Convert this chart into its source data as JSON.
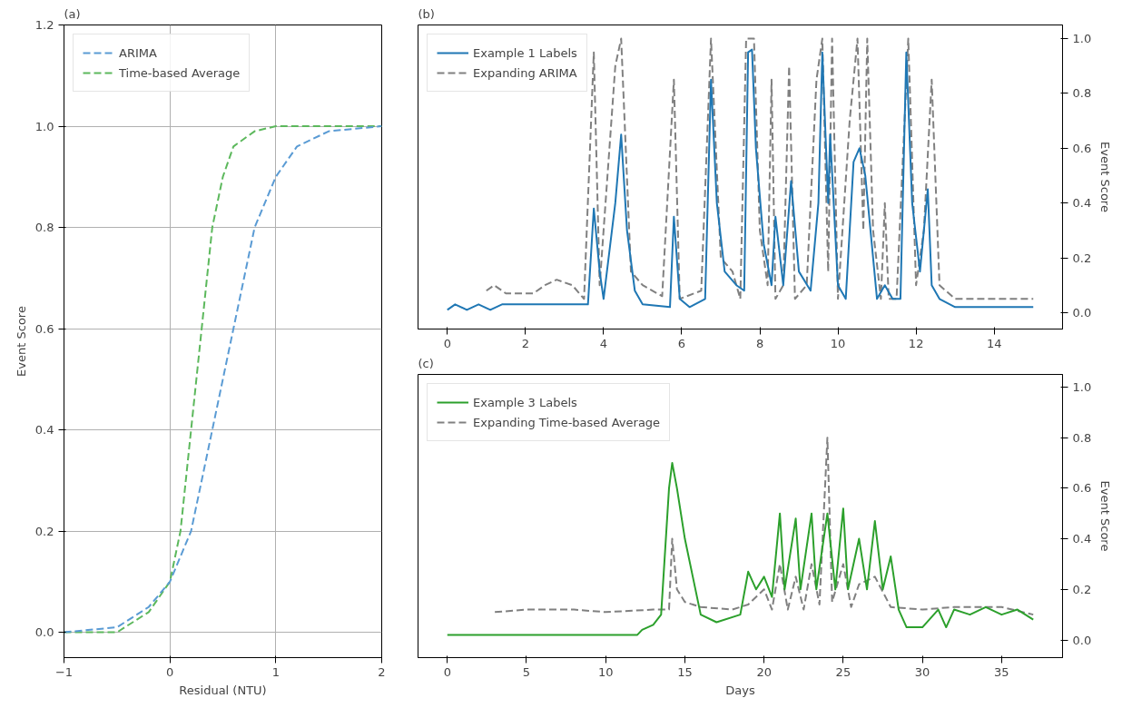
{
  "chart_data": [
    {
      "type": "line",
      "title": "(a)",
      "xlabel": "Residual (NTU)",
      "ylabel": "Event Score",
      "xlim": [
        -1,
        2
      ],
      "ylim": [
        -0.05,
        1.2
      ],
      "xticks": [
        {
          "value": -1,
          "label": "−1"
        },
        0,
        1,
        2
      ],
      "yticks": [
        {
          "value": 0,
          "label": "0.0"
        },
        {
          "value": 0.2,
          "label": "0.2"
        },
        {
          "value": 0.4,
          "label": "0.4"
        },
        {
          "value": 0.6,
          "label": "0.6"
        },
        {
          "value": 0.8,
          "label": "0.8"
        },
        {
          "value": 1.0,
          "label": "1.0"
        },
        {
          "value": 1.2,
          "label": "1.2"
        }
      ],
      "grid": true,
      "legend": "top left",
      "line_style": "dashed",
      "series": [
        {
          "name": "ARIMA",
          "color": "#5a9bd4",
          "x": [
            -1,
            -0.5,
            -0.2,
            0,
            0.2,
            0.4,
            0.6,
            0.8,
            1.0,
            1.2,
            1.5,
            2
          ],
          "values": [
            0.0,
            0.01,
            0.05,
            0.1,
            0.2,
            0.4,
            0.6,
            0.8,
            0.9,
            0.96,
            0.99,
            1.0
          ]
        },
        {
          "name": "Time-based Average",
          "color": "#5cb85c",
          "x": [
            -1,
            -0.5,
            -0.2,
            0,
            0.1,
            0.2,
            0.3,
            0.4,
            0.5,
            0.6,
            0.8,
            1.0,
            2
          ],
          "values": [
            0.0,
            0.0,
            0.04,
            0.1,
            0.2,
            0.4,
            0.6,
            0.8,
            0.9,
            0.96,
            0.99,
            1.0,
            1.0
          ]
        }
      ]
    },
    {
      "type": "line",
      "title": "(b)",
      "y2label": "Event Score",
      "xlim": [
        -0.75,
        15.75
      ],
      "y2lim": [
        -0.06,
        1.05
      ],
      "xticks": [
        0,
        2,
        4,
        6,
        8,
        10,
        12,
        14
      ],
      "y2ticks": [
        {
          "value": 0,
          "label": "0.0"
        },
        {
          "value": 0.2,
          "label": "0.2"
        },
        {
          "value": 0.4,
          "label": "0.4"
        },
        {
          "value": 0.6,
          "label": "0.6"
        },
        {
          "value": 0.8,
          "label": "0.8"
        },
        {
          "value": 1.0,
          "label": "1.0"
        }
      ],
      "legend": "top left",
      "series": [
        {
          "name": "Example 1 Labels",
          "color": "#1f77b4",
          "line_style": "solid",
          "axis": "y2",
          "x": [
            0,
            0.2,
            0.5,
            0.8,
            1.1,
            1.4,
            3.6,
            3.75,
            3.9,
            4.0,
            4.3,
            4.45,
            4.6,
            4.8,
            5.0,
            5.7,
            5.8,
            5.95,
            6.2,
            6.6,
            6.75,
            6.9,
            7.1,
            7.4,
            7.6,
            7.7,
            7.8,
            7.9,
            8.1,
            8.3,
            8.4,
            8.6,
            8.8,
            9.0,
            9.3,
            9.5,
            9.6,
            9.75,
            9.8,
            10.0,
            10.2,
            10.4,
            10.55,
            10.7,
            10.9,
            11.0,
            11.2,
            11.4,
            11.6,
            11.75,
            11.9,
            12.1,
            12.3,
            12.4,
            12.6,
            13.0,
            15.0
          ],
          "values": [
            0.01,
            0.03,
            0.01,
            0.03,
            0.01,
            0.03,
            0.03,
            0.38,
            0.15,
            0.05,
            0.4,
            0.65,
            0.3,
            0.08,
            0.03,
            0.02,
            0.35,
            0.05,
            0.02,
            0.05,
            0.85,
            0.4,
            0.15,
            0.1,
            0.08,
            0.95,
            0.96,
            0.6,
            0.25,
            0.1,
            0.35,
            0.1,
            0.48,
            0.15,
            0.08,
            0.4,
            0.95,
            0.4,
            0.65,
            0.1,
            0.05,
            0.55,
            0.6,
            0.5,
            0.2,
            0.05,
            0.1,
            0.05,
            0.05,
            0.95,
            0.4,
            0.15,
            0.45,
            0.1,
            0.05,
            0.02,
            0.02
          ]
        },
        {
          "name": "Expanding ARIMA",
          "color": "#808080",
          "line_style": "dashed",
          "axis": "y2",
          "x": [
            1.0,
            1.2,
            1.5,
            2.2,
            2.5,
            2.8,
            3.2,
            3.5,
            3.75,
            3.9,
            4.3,
            4.45,
            4.7,
            5.0,
            5.5,
            5.8,
            5.95,
            6.5,
            6.75,
            7.0,
            7.3,
            7.5,
            7.65,
            7.85,
            8.0,
            8.2,
            8.3,
            8.4,
            8.6,
            8.75,
            8.9,
            9.2,
            9.45,
            9.6,
            9.75,
            9.85,
            10.0,
            10.3,
            10.5,
            10.65,
            10.75,
            10.9,
            11.1,
            11.2,
            11.3,
            11.5,
            11.8,
            12.0,
            12.2,
            12.4,
            12.6,
            13.0,
            15.0
          ],
          "values": [
            0.08,
            0.1,
            0.07,
            0.07,
            0.1,
            0.12,
            0.1,
            0.05,
            0.95,
            0.1,
            0.9,
            1.0,
            0.15,
            0.1,
            0.06,
            0.85,
            0.05,
            0.08,
            1.0,
            0.2,
            0.15,
            0.05,
            1.0,
            1.0,
            0.3,
            0.1,
            0.85,
            0.05,
            0.1,
            0.9,
            0.05,
            0.1,
            0.85,
            1.0,
            0.15,
            1.0,
            0.05,
            0.7,
            1.0,
            0.3,
            1.0,
            0.3,
            0.05,
            0.4,
            0.05,
            0.05,
            1.0,
            0.1,
            0.3,
            0.85,
            0.1,
            0.05,
            0.05
          ]
        }
      ]
    },
    {
      "type": "line",
      "title": "(c)",
      "xlabel": "Days",
      "y2label": "Event Score",
      "xlim": [
        -1.85,
        38.85
      ],
      "y2lim": [
        -0.07,
        1.05
      ],
      "xticks": [
        0,
        5,
        10,
        15,
        20,
        25,
        30,
        35
      ],
      "y2ticks": [
        {
          "value": 0,
          "label": "0.0"
        },
        {
          "value": 0.2,
          "label": "0.2"
        },
        {
          "value": 0.4,
          "label": "0.4"
        },
        {
          "value": 0.6,
          "label": "0.6"
        },
        {
          "value": 0.8,
          "label": "0.8"
        },
        {
          "value": 1.0,
          "label": "1.0"
        }
      ],
      "legend": "top left",
      "series": [
        {
          "name": "Example 3 Labels",
          "color": "#2ca02c",
          "line_style": "solid",
          "axis": "y2",
          "x": [
            0,
            12,
            12.3,
            13,
            13.5,
            14.0,
            14.2,
            14.5,
            15,
            15.5,
            16,
            17,
            18.5,
            19,
            19.5,
            20,
            20.5,
            21,
            21.3,
            22,
            22.3,
            23,
            23.3,
            24,
            24.5,
            25,
            25.3,
            26,
            26.5,
            27,
            27.5,
            28,
            28.5,
            29,
            30,
            31,
            31.5,
            32,
            33,
            34,
            35,
            36,
            37
          ],
          "values": [
            0.02,
            0.02,
            0.04,
            0.06,
            0.1,
            0.6,
            0.7,
            0.6,
            0.4,
            0.25,
            0.1,
            0.07,
            0.1,
            0.27,
            0.2,
            0.25,
            0.17,
            0.5,
            0.2,
            0.48,
            0.2,
            0.5,
            0.2,
            0.5,
            0.2,
            0.52,
            0.2,
            0.4,
            0.2,
            0.47,
            0.2,
            0.33,
            0.12,
            0.05,
            0.05,
            0.12,
            0.05,
            0.12,
            0.1,
            0.13,
            0.1,
            0.12,
            0.08
          ]
        },
        {
          "name": "Expanding Time-based Average",
          "color": "#808080",
          "line_style": "dashed",
          "axis": "y2",
          "x": [
            3,
            5,
            8,
            10,
            13,
            14,
            14.2,
            14.5,
            15,
            16,
            18,
            19,
            20,
            20.5,
            21,
            21.5,
            22,
            22.5,
            23,
            23.5,
            24,
            24.3,
            25,
            25.5,
            26,
            27,
            28,
            30,
            32,
            35,
            37
          ],
          "values": [
            0.11,
            0.12,
            0.12,
            0.11,
            0.12,
            0.12,
            0.4,
            0.2,
            0.15,
            0.13,
            0.12,
            0.14,
            0.2,
            0.12,
            0.3,
            0.12,
            0.25,
            0.12,
            0.3,
            0.14,
            0.8,
            0.15,
            0.3,
            0.13,
            0.22,
            0.25,
            0.13,
            0.12,
            0.13,
            0.13,
            0.1
          ]
        }
      ]
    }
  ]
}
